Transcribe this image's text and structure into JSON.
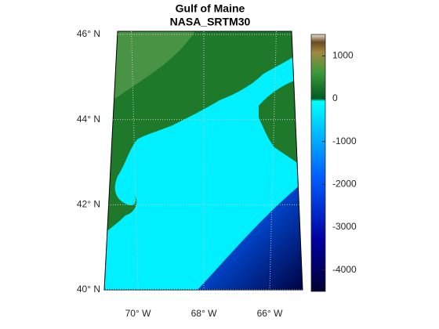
{
  "title": "Gulf of Maine",
  "subtitle": "NASA_SRTM30",
  "map": {
    "latticks": [
      {
        "value": 46,
        "label": "46° N"
      },
      {
        "value": 44,
        "label": "44° N"
      },
      {
        "value": 42,
        "label": "42° N"
      },
      {
        "value": 40,
        "label": "40° N"
      }
    ],
    "lonticks": [
      {
        "value": -70,
        "label": "70° W"
      },
      {
        "value": -68,
        "label": "68° W"
      },
      {
        "value": -66,
        "label": "66° W"
      }
    ]
  },
  "colorbar": {
    "clim": [
      -4500,
      1500
    ],
    "ticks": [
      1000,
      0,
      -1000,
      -2000,
      -3000,
      -4000
    ]
  }
}
